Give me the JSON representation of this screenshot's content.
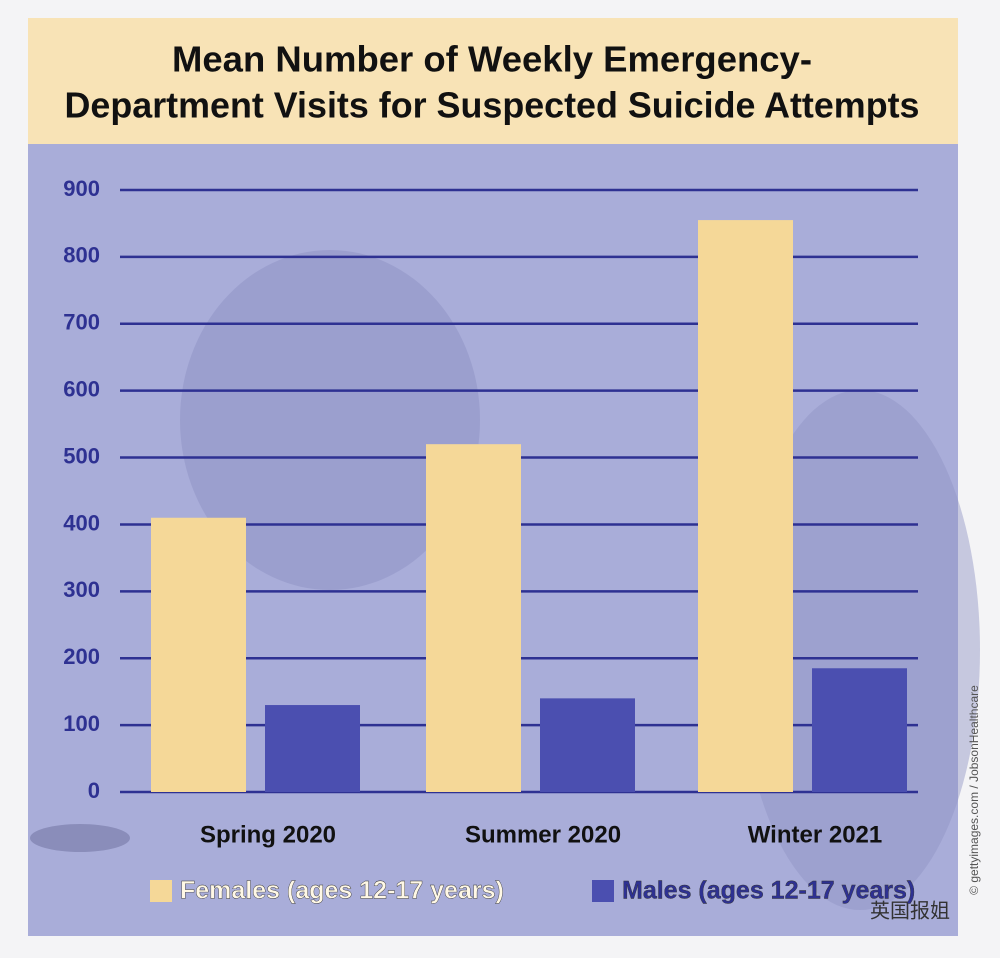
{
  "chart_data": {
    "type": "bar",
    "title": [
      "Mean Number of Weekly Emergency-",
      "Department Visits for Suspected Suicide Attempts"
    ],
    "categories": [
      "Spring 2020",
      "Summer 2020",
      "Winter 2021"
    ],
    "series": [
      {
        "name": "Females (ages 12-17 years)",
        "color": "#f5d898",
        "values": [
          410,
          520,
          855
        ]
      },
      {
        "name": "Males (ages 12-17 years)",
        "color": "#4b4fb0",
        "values": [
          130,
          140,
          185
        ]
      }
    ],
    "ylim": [
      0,
      900
    ],
    "yticks": [
      0,
      100,
      200,
      300,
      400,
      500,
      600,
      700,
      800,
      900
    ],
    "grid": true,
    "legend": "bottom",
    "credit": "© gettyimages.com / JobsonHealthcare",
    "watermark": "英国报姐"
  }
}
